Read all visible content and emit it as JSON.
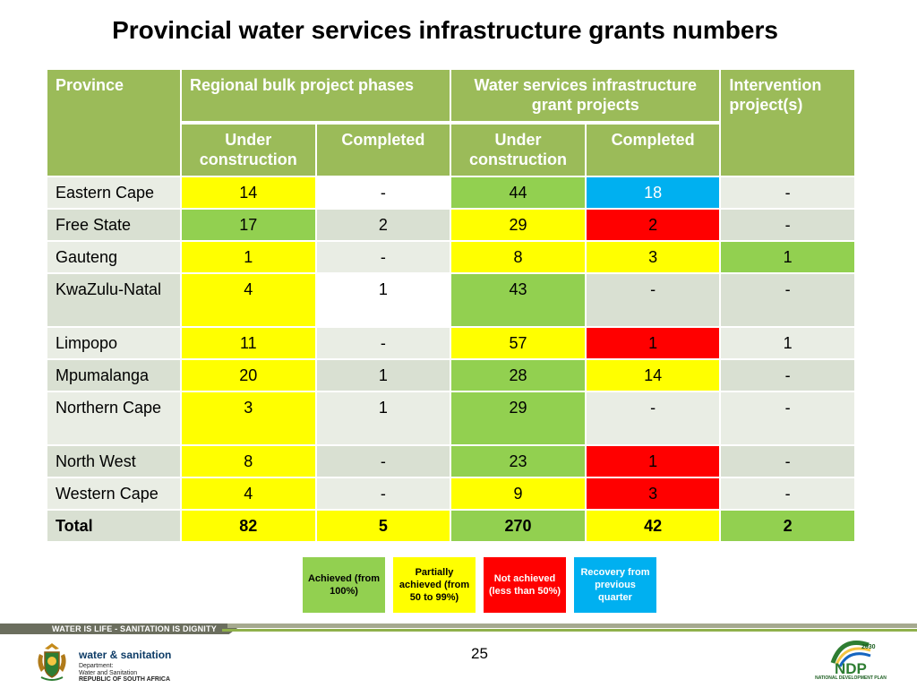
{
  "title": "Provincial water services infrastructure grants numbers",
  "table": {
    "header": {
      "province": "Province",
      "group_regional": "Regional bulk project phases",
      "group_wsig": "Water services infrastructure grant projects",
      "intervention": "Intervention project(s)",
      "under_construction": "Under construction",
      "completed": "Completed"
    },
    "rows": [
      {
        "province": "Eastern Cape",
        "rb_under": "14",
        "rb_completed": "-",
        "ws_under": "44",
        "ws_completed": "18",
        "intervention": "-"
      },
      {
        "province": "Free State",
        "rb_under": "17",
        "rb_completed": "2",
        "ws_under": "29",
        "ws_completed": "2",
        "intervention": "-"
      },
      {
        "province": "Gauteng",
        "rb_under": "1",
        "rb_completed": "-",
        "ws_under": "8",
        "ws_completed": "3",
        "intervention": "1"
      },
      {
        "province": "KwaZulu-Natal",
        "rb_under": "4",
        "rb_completed": "1",
        "ws_under": "43",
        "ws_completed": "-",
        "intervention": "-"
      },
      {
        "province": "Limpopo",
        "rb_under": "11",
        "rb_completed": "-",
        "ws_under": "57",
        "ws_completed": "1",
        "intervention": "1"
      },
      {
        "province": "Mpumalanga",
        "rb_under": "20",
        "rb_completed": "1",
        "ws_under": "28",
        "ws_completed": "14",
        "intervention": "-"
      },
      {
        "province": "Northern Cape",
        "rb_under": "3",
        "rb_completed": "1",
        "ws_under": "29",
        "ws_completed": "-",
        "intervention": "-"
      },
      {
        "province": "North West",
        "rb_under": "8",
        "rb_completed": "-",
        "ws_under": "23",
        "ws_completed": "1",
        "intervention": "-"
      },
      {
        "province": "Western Cape",
        "rb_under": "4",
        "rb_completed": "-",
        "ws_under": "9",
        "ws_completed": "3",
        "intervention": "-"
      }
    ],
    "total": {
      "label": "Total",
      "rb_under": "82",
      "rb_completed": "5",
      "ws_under": "270",
      "ws_completed": "42",
      "intervention": "2"
    }
  },
  "legend": {
    "achieved": "Achieved (from 100%)",
    "partial": "Partially achieved (from 50 to 99%)",
    "not_achieved": "Not achieved (less than 50%)",
    "recovery": "Recovery from previous quarter"
  },
  "colors": {
    "header_green": "#9bbb59",
    "achieved": "#92d050",
    "partial": "#ffff00",
    "not_achieved": "#ff0000",
    "recovery": "#00b0f0"
  },
  "footer": {
    "slogan": "WATER IS LIFE - SANITATION IS DIGNITY",
    "page_number": "25",
    "dept_brand": "water & sanitation",
    "dept_line1": "Department:",
    "dept_line2": "Water and Sanitation",
    "dept_line3": "REPUBLIC OF SOUTH AFRICA",
    "ndp_year": "2030",
    "ndp_mark": "NDP",
    "ndp_caption": "NATIONAL DEVELOPMENT PLAN"
  }
}
